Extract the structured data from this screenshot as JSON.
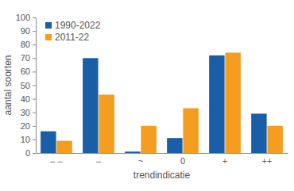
{
  "chart_data": {
    "type": "bar",
    "x_label": "trendindicatie",
    "y_label": "aantal soorten",
    "categories": [
      "– –",
      "–",
      "~",
      "0",
      "+",
      "++"
    ],
    "series": [
      {
        "name": "1990-2022",
        "color": "#1b5ea8",
        "values": [
          16,
          70,
          1,
          11,
          72,
          29
        ]
      },
      {
        "name": "2011-22",
        "color": "#f59d1e",
        "values": [
          9,
          43,
          20,
          33,
          74,
          20
        ]
      }
    ],
    "ylim": [
      0,
      100
    ],
    "yticks": [
      0,
      10,
      20,
      30,
      40,
      50,
      60,
      70,
      80,
      90,
      100
    ],
    "grid": false,
    "legend": "top-left"
  }
}
